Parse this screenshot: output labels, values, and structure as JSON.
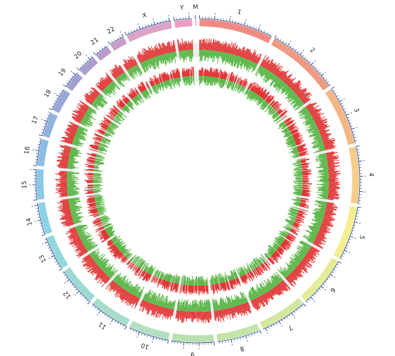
{
  "chart_data": {
    "type": "circos",
    "chromosomes": [
      {
        "label": "1",
        "length": 249,
        "color": "#ee8c84"
      },
      {
        "label": "2",
        "length": 243,
        "color": "#ef9a82"
      },
      {
        "label": "3",
        "length": 198,
        "color": "#f3b786"
      },
      {
        "label": "4",
        "length": 191,
        "color": "#f7cc88"
      },
      {
        "label": "5",
        "length": 181,
        "color": "#f5ee8f"
      },
      {
        "label": "6",
        "length": 171,
        "color": "#e6ec96"
      },
      {
        "label": "7",
        "length": 159,
        "color": "#d3e79e"
      },
      {
        "label": "8",
        "length": 146,
        "color": "#c4e4a8"
      },
      {
        "label": "9",
        "length": 141,
        "color": "#b8e1b0"
      },
      {
        "label": "10",
        "length": 136,
        "color": "#b2e0c0"
      },
      {
        "label": "11",
        "length": 135,
        "color": "#a8ddc8"
      },
      {
        "label": "12",
        "length": 133,
        "color": "#9cdad2"
      },
      {
        "label": "13",
        "length": 115,
        "color": "#92d8de"
      },
      {
        "label": "14",
        "length": 107,
        "color": "#8ed2e6"
      },
      {
        "label": "15",
        "length": 102,
        "color": "#8cc8e6"
      },
      {
        "label": "16",
        "length": 90,
        "color": "#8cbde2"
      },
      {
        "label": "17",
        "length": 81,
        "color": "#90b2dc"
      },
      {
        "label": "18",
        "length": 78,
        "color": "#98a6d6"
      },
      {
        "label": "19",
        "length": 59,
        "color": "#a39fd2"
      },
      {
        "label": "20",
        "length": 63,
        "color": "#ac9ccf"
      },
      {
        "label": "21",
        "length": 48,
        "color": "#b79bcc"
      },
      {
        "label": "22",
        "length": 51,
        "color": "#c59dc9"
      },
      {
        "label": "X",
        "length": 155,
        "color": "#dca3c8"
      },
      {
        "label": "Y",
        "length": 59,
        "color": "#ea9fc0"
      },
      {
        "label": "M",
        "length": 3,
        "color": "#f093b6"
      }
    ],
    "tracks": [
      {
        "gain_color": "#e23232",
        "loss_color": "#5db84a"
      },
      {
        "gain_color": "#e23232",
        "loss_color": "#5db84a"
      }
    ],
    "tick_color": "#1f3f8f",
    "track_background": "#eeeeee"
  }
}
